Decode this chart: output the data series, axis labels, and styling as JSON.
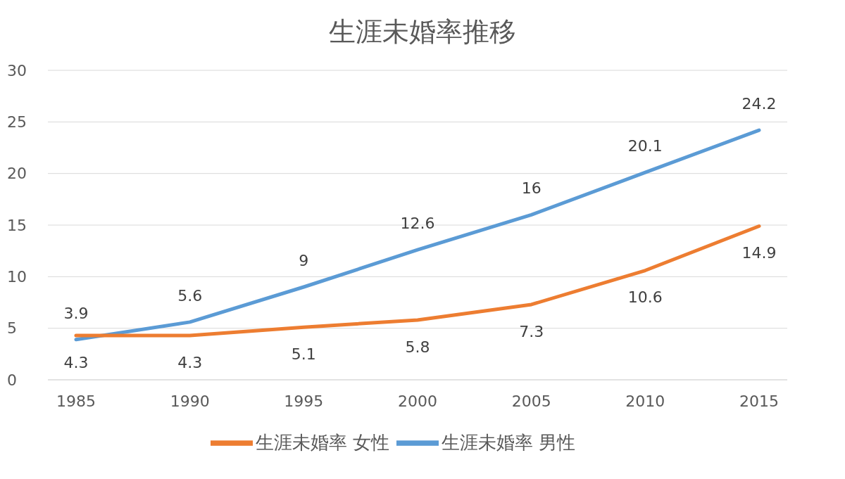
{
  "chart_data": {
    "type": "line",
    "title": "生涯未婚率推移",
    "categories": [
      "1985",
      "1990",
      "1995",
      "2000",
      "2005",
      "2010",
      "2015"
    ],
    "series": [
      {
        "name": "生涯未婚率 男性",
        "color": "#5b9bd5",
        "values": [
          3.9,
          5.6,
          9,
          12.6,
          16,
          20.1,
          24.2
        ]
      },
      {
        "name": "生涯未婚率 女性",
        "color": "#ed7d31",
        "values": [
          4.3,
          4.3,
          5.1,
          5.8,
          7.3,
          10.6,
          14.9
        ]
      }
    ],
    "ylim": [
      0,
      30
    ],
    "yticks": [
      0,
      5,
      10,
      15,
      20,
      25,
      30
    ],
    "grid": "y",
    "legend": "bottom",
    "data_labels": true,
    "marker": "none",
    "line_style": "solid"
  }
}
